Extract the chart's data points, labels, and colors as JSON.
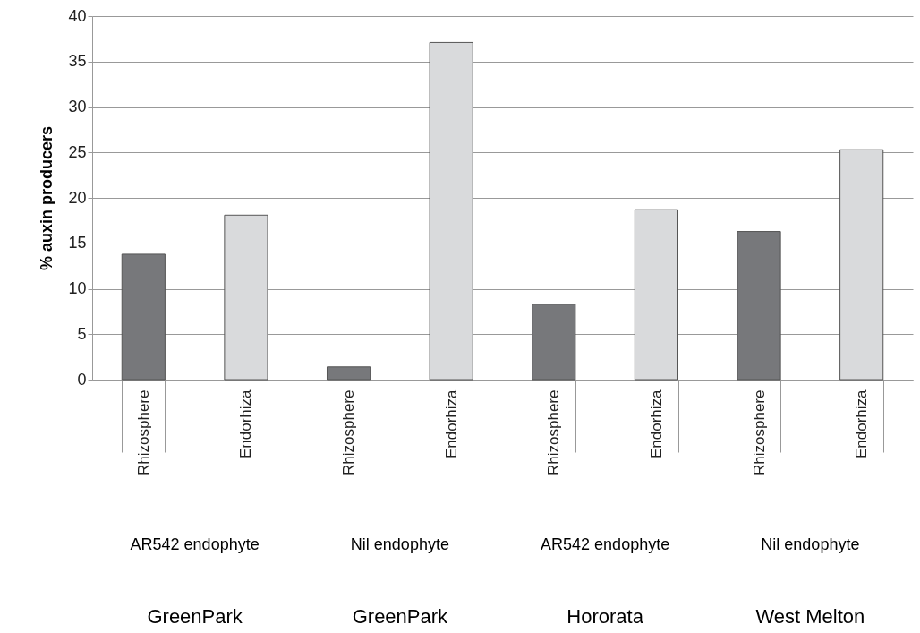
{
  "chart_data": {
    "type": "bar",
    "ylabel": "% auxin producers",
    "categories": [
      "Rhizosphere",
      "Endorhiza",
      "Rhizosphere",
      "Endorhiza",
      "Rhizosphere",
      "Endorhiza",
      "Rhizosphere",
      "Endorhiza"
    ],
    "values": [
      13.8,
      18.1,
      1.4,
      37.1,
      8.3,
      18.7,
      16.3,
      25.3
    ],
    "colors": [
      "#77787b",
      "#d9dadc",
      "#77787b",
      "#d9dadc",
      "#77787b",
      "#d9dadc",
      "#77787b",
      "#d9dadc"
    ],
    "ylim": [
      0,
      40
    ],
    "yticks": [
      0,
      5,
      10,
      15,
      20,
      25,
      30,
      35,
      40
    ],
    "grid": "y",
    "annotations": [
      "AR542 endophyte",
      "Nil endophyte",
      "AR542 endophyte",
      "Nil endophyte",
      "GreenPark",
      "GreenPark",
      "Hororata",
      "West Melton"
    ]
  }
}
